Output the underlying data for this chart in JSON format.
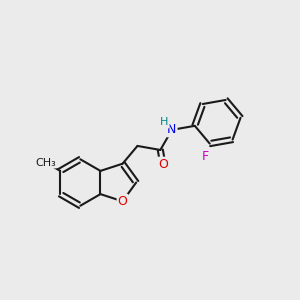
{
  "bg_color": "#ebebeb",
  "bond_color": "#1a1a1a",
  "bond_width": 1.5,
  "dbo": 0.055,
  "atom_colors": {
    "O": "#dd0000",
    "N": "#0000ee",
    "F": "#cc00cc",
    "H": "#008888"
  },
  "font_size": 9,
  "fig_size": [
    3.0,
    3.0
  ],
  "dpi": 100,
  "xlim": [
    -3.2,
    3.2
  ],
  "ylim": [
    -2.4,
    2.4
  ]
}
